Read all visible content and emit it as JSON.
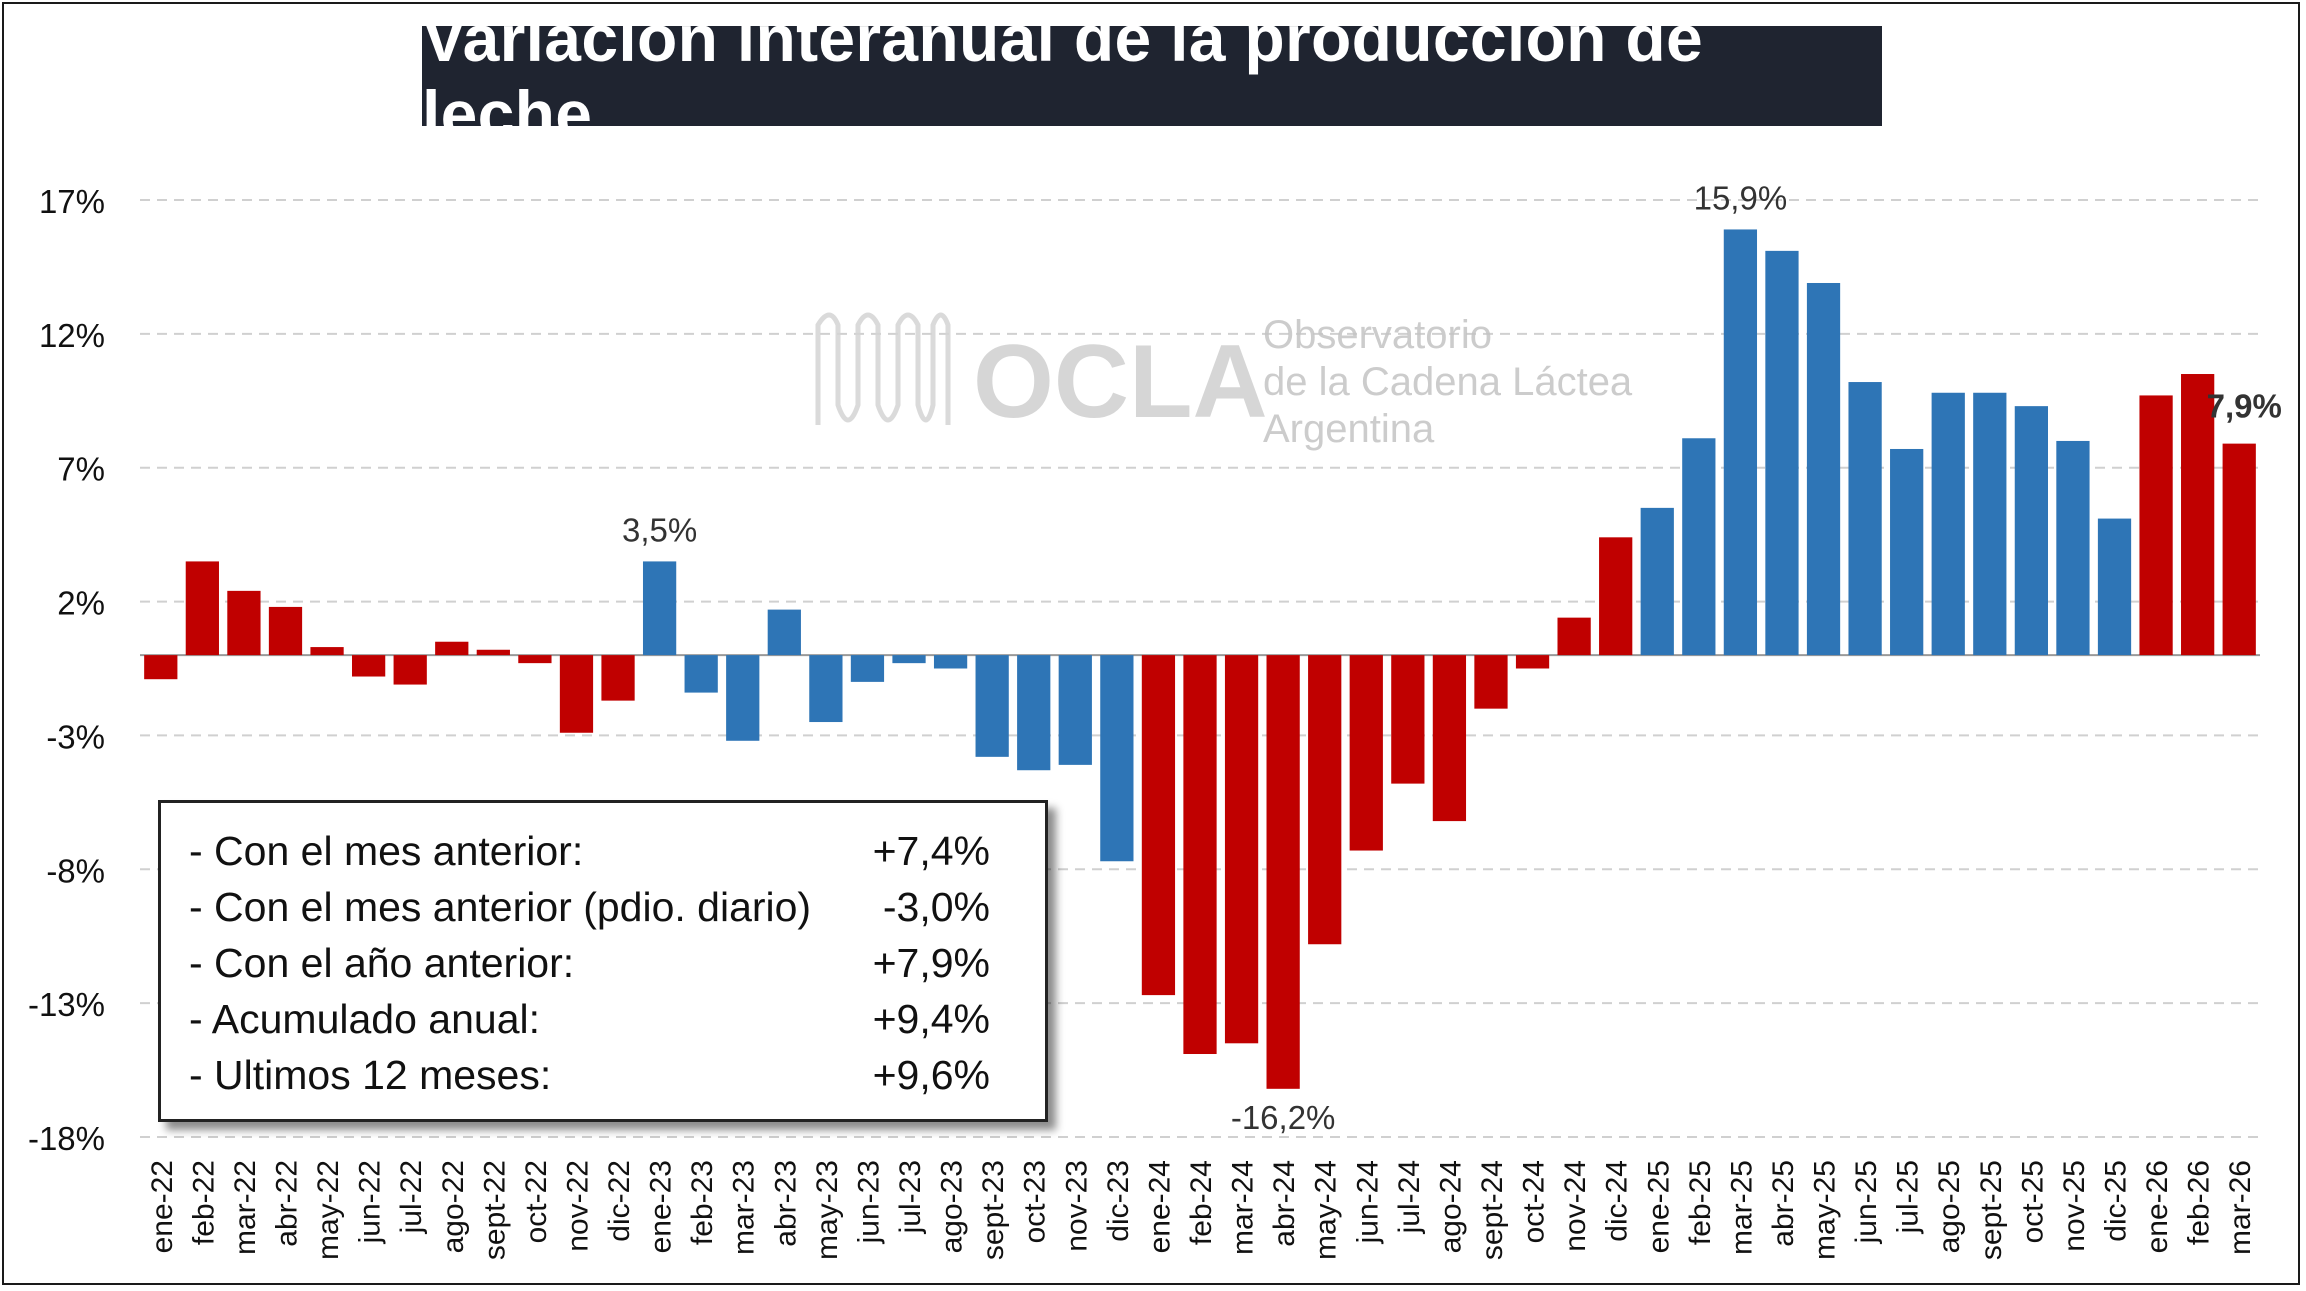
{
  "title": "Variación interanual de la producción de leche",
  "watermark": {
    "logo_text": "OCLA",
    "line1": "Observatorio",
    "line2": "de la Cadena Láctea",
    "line3": "Argentina"
  },
  "stats": [
    {
      "label": "- Con el mes anterior:",
      "value": "+7,4%"
    },
    {
      "label": "- Con el mes anterior (pdio. diario)",
      "value": "-3,0%"
    },
    {
      "label": "- Con el año anterior:",
      "value": "+7,9%"
    },
    {
      "label": "- Acumulado anual:",
      "value": "+9,4%"
    },
    {
      "label": "- Ultimos 12 meses:",
      "value": "+9,6%"
    }
  ],
  "colors": {
    "red": "#c00000",
    "blue": "#2e75b6",
    "title_bg": "#1f2430",
    "grid": "#d0d0d0"
  },
  "chart_data": {
    "type": "bar",
    "title": "Variación interanual de la producción de leche",
    "ylim": [
      -18,
      17
    ],
    "yticks": [
      "17%",
      "12%",
      "7%",
      "2%",
      "-3%",
      "-8%",
      "-13%",
      "-18%"
    ],
    "ytick_values": [
      17,
      12,
      7,
      2,
      -3,
      -8,
      -13,
      -18
    ],
    "grid": true,
    "categories": [
      "ene-22",
      "feb-22",
      "mar-22",
      "abr-22",
      "may-22",
      "jun-22",
      "jul-22",
      "ago-22",
      "sept-22",
      "oct-22",
      "nov-22",
      "dic-22",
      "ene-23",
      "feb-23",
      "mar-23",
      "abr-23",
      "may-23",
      "jun-23",
      "jul-23",
      "ago-23",
      "sept-23",
      "oct-23",
      "nov-23",
      "dic-23",
      "ene-24",
      "feb-24",
      "mar-24",
      "abr-24",
      "may-24",
      "jun-24",
      "jul-24",
      "ago-24",
      "sept-24",
      "oct-24",
      "nov-24",
      "dic-24",
      "ene-25",
      "feb-25",
      "mar-25",
      "abr-25",
      "may-25",
      "jun-25",
      "jul-25",
      "ago-25",
      "sept-25",
      "oct-25",
      "nov-25",
      "dic-25",
      "ene-26",
      "feb-26",
      "mar-26"
    ],
    "values": [
      -0.9,
      3.5,
      2.4,
      1.8,
      0.3,
      -0.8,
      -1.1,
      0.5,
      0.2,
      -0.3,
      -2.9,
      -1.7,
      3.5,
      -1.4,
      -3.2,
      1.7,
      -2.5,
      -1.0,
      -0.3,
      -0.5,
      -3.8,
      -4.3,
      -4.1,
      -7.7,
      -12.7,
      -14.9,
      -14.5,
      -16.2,
      -10.8,
      -7.3,
      -4.8,
      -6.2,
      -2.0,
      -0.5,
      1.4,
      4.4,
      5.5,
      8.1,
      15.9,
      15.1,
      13.9,
      10.2,
      7.7,
      9.8,
      9.8,
      9.3,
      8.0,
      5.1,
      9.7,
      10.5,
      7.9
    ],
    "bar_colors": [
      "red",
      "red",
      "red",
      "red",
      "red",
      "red",
      "red",
      "red",
      "red",
      "red",
      "red",
      "red",
      "blue",
      "blue",
      "blue",
      "blue",
      "blue",
      "blue",
      "blue",
      "blue",
      "blue",
      "blue",
      "blue",
      "blue",
      "red",
      "red",
      "red",
      "red",
      "red",
      "red",
      "red",
      "red",
      "red",
      "red",
      "red",
      "red",
      "blue",
      "blue",
      "blue",
      "blue",
      "blue",
      "blue",
      "blue",
      "blue",
      "blue",
      "blue",
      "blue",
      "blue",
      "red",
      "red",
      "red"
    ],
    "data_labels": [
      {
        "index": 12,
        "text": "3,5%"
      },
      {
        "index": 27,
        "text": "-16,2%"
      },
      {
        "index": 38,
        "text": "15,9%"
      },
      {
        "index": 50,
        "text": "7,9%"
      }
    ]
  }
}
